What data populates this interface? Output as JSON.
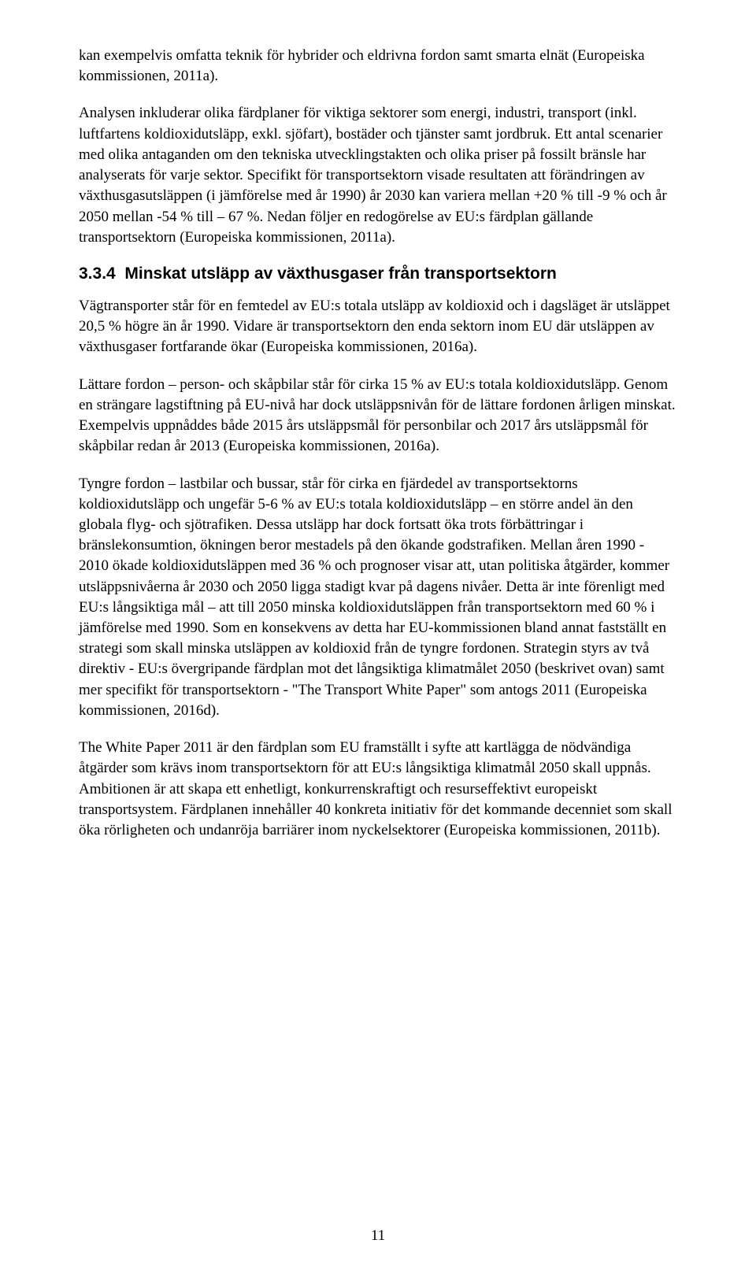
{
  "paragraphs": {
    "p1": "kan exempelvis omfatta teknik för hybrider och eldrivna fordon samt smarta elnät (Europeiska kommissionen, 2011a).",
    "p2": "Analysen inkluderar olika färdplaner för viktiga sektorer som energi, industri, transport (inkl. luftfartens koldioxidutsläpp, exkl. sjöfart), bostäder och tjänster samt jordbruk. Ett antal scenarier med olika antaganden om den tekniska utvecklingstakten och olika priser på fossilt bränsle har analyserats för varje sektor. Specifikt för transportsektorn visade resultaten att förändringen av växthusgasutsläppen (i jämförelse med år 1990) år 2030 kan variera mellan +20 % till -9 % och år 2050 mellan -54 % till – 67 %. Nedan följer en redogörelse av EU:s färdplan gällande transportsektorn (Europeiska kommissionen, 2011a).",
    "p3": "Vägtransporter står för en femtedel av EU:s totala utsläpp av koldioxid och i dagsläget är utsläppet 20,5 % högre än år 1990. Vidare är transportsektorn den enda sektorn inom EU där utsläppen av växthusgaser fortfarande ökar (Europeiska kommissionen, 2016a).",
    "p4": "Lättare fordon – person- och skåpbilar står för cirka 15 % av EU:s totala koldioxidutsläpp. Genom en strängare lagstiftning på EU-nivå har dock utsläppsnivån för de lättare fordonen årligen minskat. Exempelvis uppnåddes både 2015 års utsläppsmål för personbilar och 2017 års utsläppsmål för skåpbilar redan år 2013 (Europeiska kommissionen, 2016a).",
    "p5": "Tyngre fordon – lastbilar och bussar, står för cirka en fjärdedel av transportsektorns koldioxidutsläpp och ungefär 5-6 % av EU:s totala koldioxidutsläpp – en större andel än den globala flyg- och sjötrafiken.  Dessa utsläpp har dock fortsatt öka trots förbättringar i bränslekonsumtion, ökningen beror mestadels på den ökande godstrafiken. Mellan åren 1990 -  2010 ökade koldioxidutsläppen med 36 % och prognoser visar att, utan politiska åtgärder, kommer utsläppsnivåerna år 2030 och 2050 ligga stadigt kvar på dagens nivåer. Detta är inte förenligt med EU:s långsiktiga mål – att till 2050 minska koldioxidutsläppen från transportsektorn med 60 % i jämförelse med 1990. Som en konsekvens av detta har EU-kommissionen bland annat fastställt en strategi som skall minska utsläppen av koldioxid från de tyngre fordonen. Strategin styrs av två direktiv - EU:s övergripande färdplan mot det långsiktiga klimatmålet 2050 (beskrivet ovan) samt mer specifikt för transportsektorn - \"The Transport White Paper\" som antogs 2011 (Europeiska kommissionen, 2016d).",
    "p6": "The White Paper 2011 är den färdplan som EU framställt i syfte att kartlägga de nödvändiga åtgärder som krävs inom transportsektorn för att EU:s långsiktiga klimatmål 2050 skall uppnås. Ambitionen är att skapa ett enhetligt, konkurrenskraftigt och resurseffektivt europeiskt transportsystem. Färdplanen innehåller 40 konkreta initiativ för det kommande decenniet som skall öka rörligheten och undanröja barriärer inom nyckelsektorer (Europeiska kommissionen, 2011b)."
  },
  "heading": {
    "number": "3.3.4",
    "title": "Minskat utsläpp av växthusgaser från transportsektorn"
  },
  "pageNumber": "11"
}
